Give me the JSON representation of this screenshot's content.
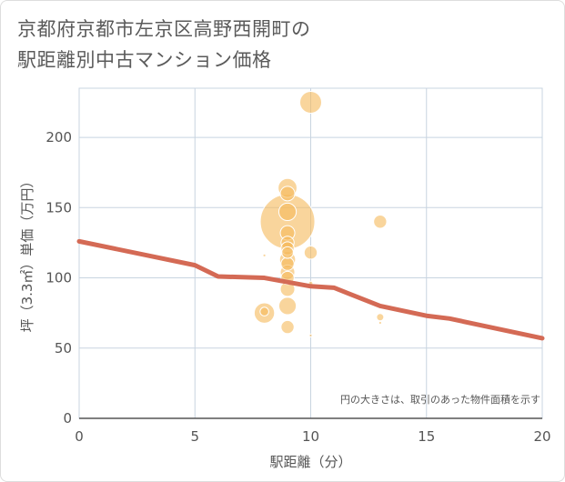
{
  "title_line1": "京都府京都市左京区高野西開町の",
  "title_line2": "駅距離別中古マンション価格",
  "chart_data": {
    "type": "scatter",
    "title": "京都府京都市左京区高野西開町の駅距離別中古マンション価格",
    "xlabel": "駅距離（分）",
    "ylabel": "坪（3.3㎡）単価（万円）",
    "xlim": [
      0,
      20
    ],
    "ylim": [
      0,
      235
    ],
    "xticks": [
      "0",
      "5",
      "10",
      "15",
      "20"
    ],
    "yticks": [
      "0",
      "50",
      "100",
      "150",
      "200"
    ],
    "xtick_values": [
      0,
      5,
      10,
      15,
      20
    ],
    "ytick_values": [
      0,
      50,
      100,
      150,
      200
    ],
    "grid": true,
    "note": "円の大きさは、取引のあった物件面積を示す",
    "bubble_color": "#f5b95a",
    "line_color": "#d46a55",
    "bubbles": [
      {
        "x": 10,
        "y": 225,
        "size": 3.0
      },
      {
        "x": 9,
        "y": 164,
        "size": 2.6
      },
      {
        "x": 9,
        "y": 160,
        "size": 2.0
      },
      {
        "x": 9,
        "y": 147,
        "size": 2.4
      },
      {
        "x": 9,
        "y": 140,
        "size": 7.5
      },
      {
        "x": 9,
        "y": 132,
        "size": 2.0
      },
      {
        "x": 9,
        "y": 125,
        "size": 1.8
      },
      {
        "x": 9,
        "y": 121,
        "size": 1.8
      },
      {
        "x": 9,
        "y": 118,
        "size": 1.6
      },
      {
        "x": 9,
        "y": 113,
        "size": 2.2
      },
      {
        "x": 9,
        "y": 110,
        "size": 1.8
      },
      {
        "x": 9,
        "y": 104,
        "size": 2.0
      },
      {
        "x": 9,
        "y": 100,
        "size": 1.8
      },
      {
        "x": 9,
        "y": 92,
        "size": 2.0
      },
      {
        "x": 9,
        "y": 80,
        "size": 2.4
      },
      {
        "x": 9,
        "y": 65,
        "size": 1.8
      },
      {
        "x": 10,
        "y": 118,
        "size": 1.8
      },
      {
        "x": 10,
        "y": 96,
        "size": 0.6
      },
      {
        "x": 10,
        "y": 59,
        "size": 0.4
      },
      {
        "x": 8,
        "y": 116,
        "size": 0.4
      },
      {
        "x": 8,
        "y": 75,
        "size": 2.8
      },
      {
        "x": 8,
        "y": 76,
        "size": 1.2
      },
      {
        "x": 13,
        "y": 140,
        "size": 1.8
      },
      {
        "x": 13,
        "y": 72,
        "size": 1.0
      },
      {
        "x": 13,
        "y": 68,
        "size": 0.4
      }
    ],
    "trend_line": [
      {
        "x": 0,
        "y": 126
      },
      {
        "x": 5,
        "y": 109
      },
      {
        "x": 6,
        "y": 101
      },
      {
        "x": 8,
        "y": 100
      },
      {
        "x": 9,
        "y": 97
      },
      {
        "x": 10,
        "y": 94
      },
      {
        "x": 11,
        "y": 93
      },
      {
        "x": 13,
        "y": 80
      },
      {
        "x": 15,
        "y": 73
      },
      {
        "x": 16,
        "y": 71
      },
      {
        "x": 20,
        "y": 57
      }
    ]
  }
}
